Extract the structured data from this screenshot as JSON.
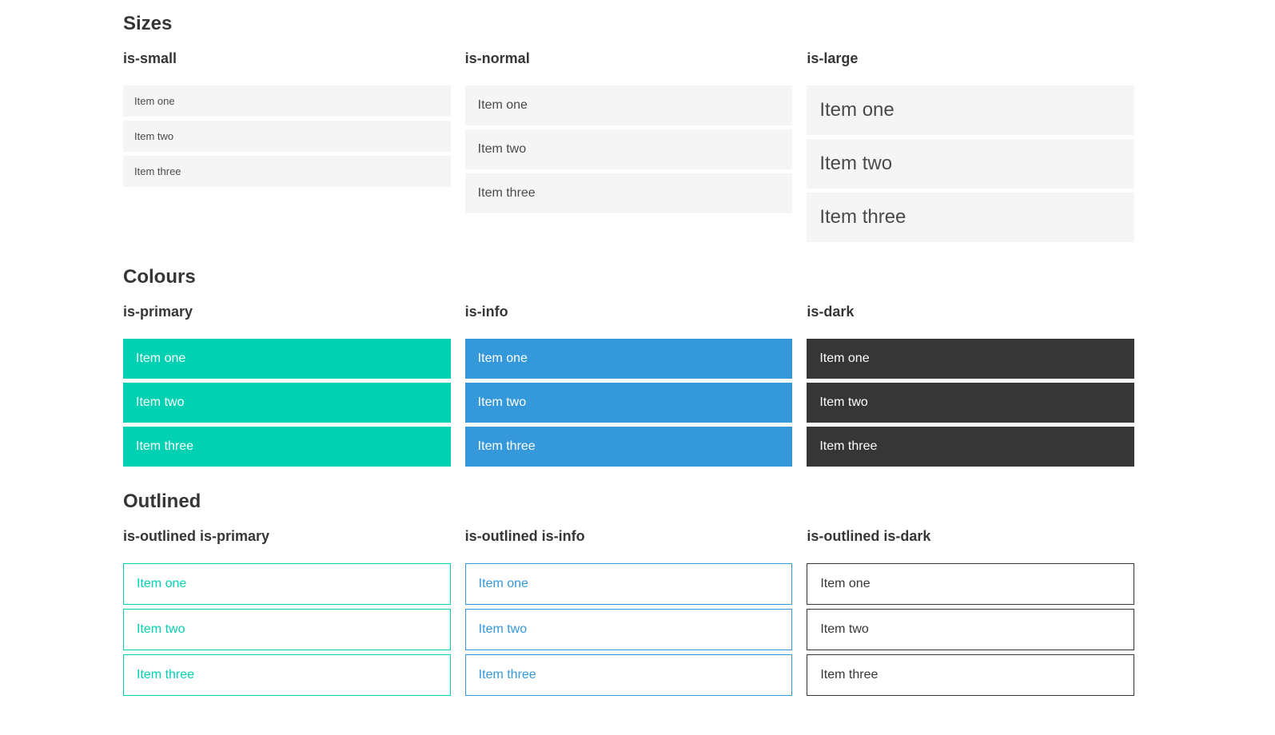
{
  "colors": {
    "primary": "#00d1b2",
    "info": "#3498db",
    "dark": "#363636",
    "light_bg": "#f5f5f5",
    "text": "#4a4a4a",
    "heading": "#363636"
  },
  "sections": [
    {
      "title": "Sizes",
      "groups": [
        {
          "label": "is-small",
          "items": [
            "Item one",
            "Item two",
            "Item three"
          ]
        },
        {
          "label": "is-normal",
          "items": [
            "Item one",
            "Item two",
            "Item three"
          ]
        },
        {
          "label": "is-large",
          "items": [
            "Item one",
            "Item two",
            "Item three"
          ]
        }
      ]
    },
    {
      "title": "Colours",
      "groups": [
        {
          "label": "is-primary",
          "items": [
            "Item one",
            "Item two",
            "Item three"
          ]
        },
        {
          "label": "is-info",
          "items": [
            "Item one",
            "Item two",
            "Item three"
          ]
        },
        {
          "label": "is-dark",
          "items": [
            "Item one",
            "Item two",
            "Item three"
          ]
        }
      ]
    },
    {
      "title": "Outlined",
      "groups": [
        {
          "label": "is-outlined is-primary",
          "items": [
            "Item one",
            "Item two",
            "Item three"
          ]
        },
        {
          "label": "is-outlined is-info",
          "items": [
            "Item one",
            "Item two",
            "Item three"
          ]
        },
        {
          "label": "is-outlined is-dark",
          "items": [
            "Item one",
            "Item two",
            "Item three"
          ]
        }
      ]
    }
  ]
}
